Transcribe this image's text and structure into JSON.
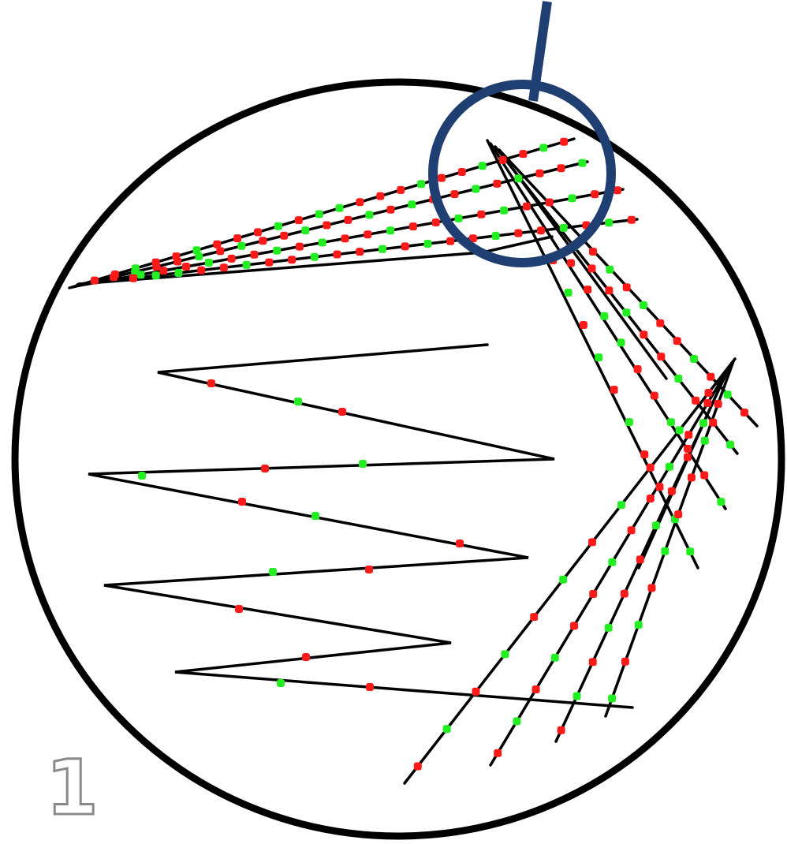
{
  "figure": {
    "panel_label": "1",
    "colors": {
      "streak_line": "#000000",
      "plate_border": "#000000",
      "colony_red": "#ff1a1a",
      "colony_green": "#22ee22",
      "highlight_circle": "#1f3f73",
      "panel_label_outline": "#8a8a8a"
    }
  }
}
